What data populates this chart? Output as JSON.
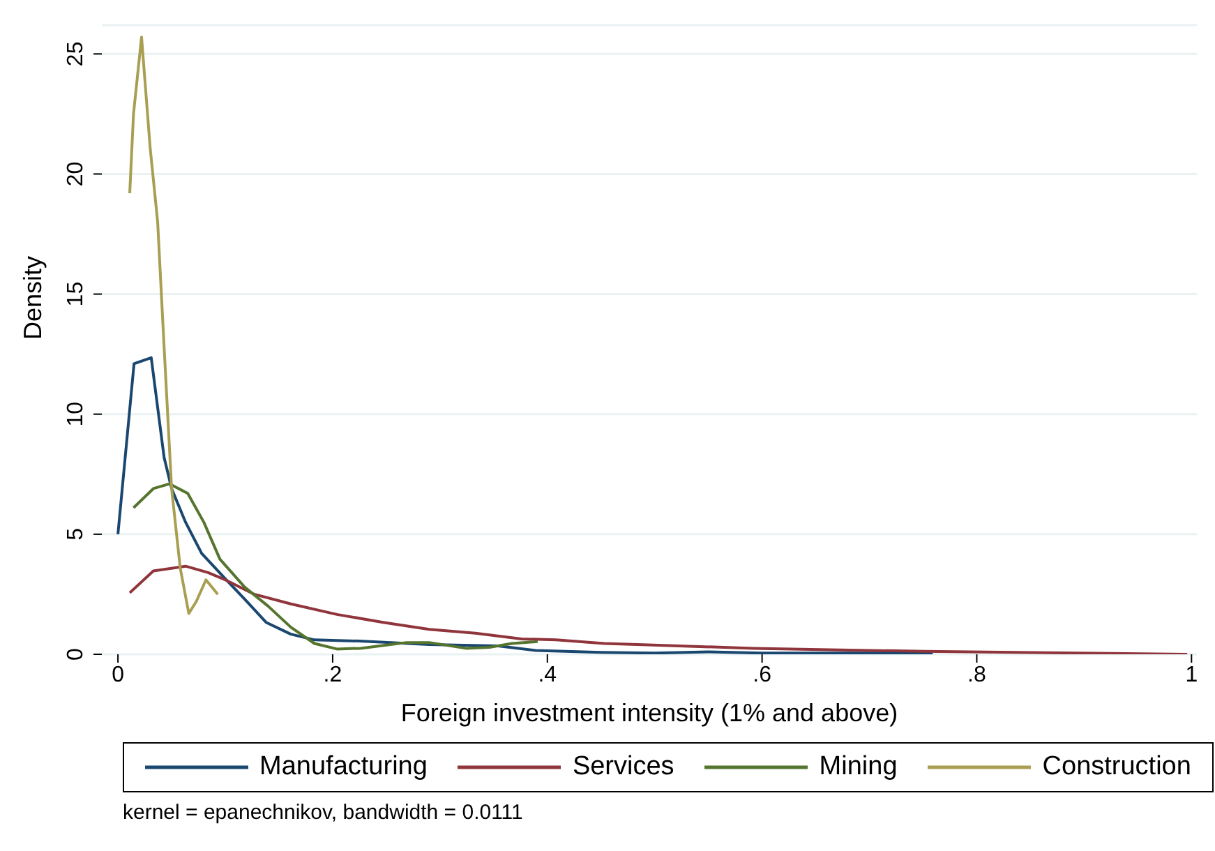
{
  "chart_data": {
    "type": "line",
    "xlabel": "Foreign investment intensity (1% and above)",
    "ylabel": "Density",
    "xlim": [
      -0.015,
      1.005
    ],
    "ylim": [
      0,
      26.2
    ],
    "xticks": [
      {
        "value": 0,
        "label": "0"
      },
      {
        "value": 0.2,
        "label": ".2"
      },
      {
        "value": 0.4,
        "label": ".4"
      },
      {
        "value": 0.6,
        "label": ".6"
      },
      {
        "value": 0.8,
        "label": ".8"
      },
      {
        "value": 1,
        "label": "1"
      }
    ],
    "yticks": [
      0,
      5,
      10,
      15,
      20,
      25
    ],
    "grid": "y",
    "legend": "bottom",
    "marker": "none",
    "line_style": "solid",
    "annotations": [
      "kernel = epanechnikov, bandwidth = 0.0111"
    ],
    "series": [
      {
        "name": "Manufacturing",
        "color": "#1a476f",
        "x": [
          0,
          0.015,
          0.031,
          0.043,
          0.05,
          0.063,
          0.078,
          0.101,
          0.118,
          0.138,
          0.161,
          0.183,
          0.225,
          0.29,
          0.354,
          0.389,
          0.45,
          0.5,
          0.55,
          0.6,
          0.65,
          0.7,
          0.759
        ],
        "values": [
          5.0,
          12.1,
          12.35,
          8.2,
          6.9,
          5.5,
          4.2,
          3.1,
          2.3,
          1.33,
          0.84,
          0.6,
          0.55,
          0.41,
          0.35,
          0.16,
          0.08,
          0.05,
          0.1,
          0.05,
          0.05,
          0.05,
          0.05
        ]
      },
      {
        "name": "Services",
        "color": "#90353b",
        "x": [
          0.011,
          0.033,
          0.063,
          0.084,
          0.101,
          0.127,
          0.161,
          0.204,
          0.247,
          0.29,
          0.333,
          0.376,
          0.408,
          0.453,
          0.494,
          0.592,
          0.751,
          0.88,
          0.996
        ],
        "values": [
          2.56,
          3.47,
          3.67,
          3.4,
          3.08,
          2.5,
          2.1,
          1.66,
          1.33,
          1.04,
          0.88,
          0.64,
          0.6,
          0.45,
          0.39,
          0.25,
          0.12,
          0.06,
          0
        ]
      },
      {
        "name": "Mining",
        "color": "#55752f",
        "x": [
          0.0145,
          0.033,
          0.048,
          0.065,
          0.08,
          0.095,
          0.118,
          0.14,
          0.161,
          0.183,
          0.204,
          0.226,
          0.269,
          0.29,
          0.324,
          0.346,
          0.367,
          0.391
        ],
        "values": [
          6.1,
          6.9,
          7.1,
          6.7,
          5.5,
          3.96,
          2.8,
          2.0,
          1.13,
          0.45,
          0.22,
          0.25,
          0.49,
          0.49,
          0.25,
          0.29,
          0.45,
          0.53
        ]
      },
      {
        "name": "Construction",
        "color": "#a89f53",
        "x": [
          0.011,
          0.0145,
          0.022,
          0.03,
          0.037,
          0.043,
          0.05,
          0.058,
          0.066,
          0.073,
          0.082,
          0.093
        ],
        "values": [
          19.2,
          22.5,
          25.7,
          21.1,
          18.0,
          12.8,
          6.9,
          3.6,
          1.7,
          2.2,
          3.1,
          2.5
        ]
      }
    ]
  }
}
